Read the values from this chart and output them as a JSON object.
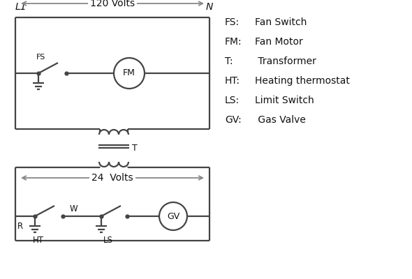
{
  "background": "#ffffff",
  "line_color": "#444444",
  "arrow_color": "#888888",
  "text_color": "#111111",
  "legend_items": [
    [
      "FS:",
      "Fan Switch"
    ],
    [
      "FM:",
      "Fan Motor"
    ],
    [
      "T:",
      " Transformer"
    ],
    [
      "HT:",
      "Heating thermostat"
    ],
    [
      "LS:",
      "Limit Switch"
    ],
    [
      "GV:",
      " Gas Valve"
    ]
  ],
  "L1_label": "L1",
  "N_label": "N",
  "v120_label": "120 Volts",
  "v24_label": "24  Volts",
  "T_label": "T",
  "R_label": "R",
  "W_label": "W",
  "HT_label": "HT",
  "LS_label": "LS",
  "FS_label": "FS",
  "FM_label": "FM",
  "GV_label": "GV",
  "lw": 1.6,
  "figw": 5.9,
  "figh": 4.0,
  "dpi": 100
}
